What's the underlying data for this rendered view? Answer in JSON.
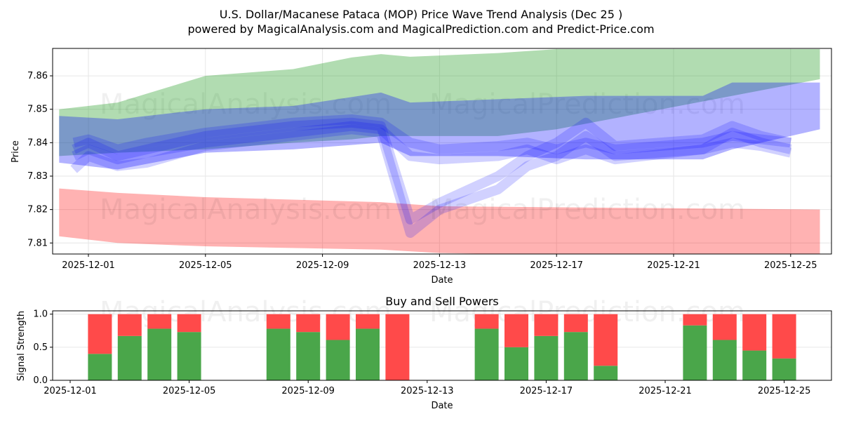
{
  "chart_data": [
    {
      "type": "area",
      "title": "U.S. Dollar/Macanese Pataca (MOP) Price Wave Trend Analysis (Dec 25 )",
      "subtitle": "powered by MagicalAnalysis.com and MagicalPrediction.com and Predict-Price.com",
      "xlabel": "Date",
      "ylabel": "Price",
      "ylim": [
        7.8067,
        7.8682
      ],
      "xlim": [
        "2025-11-29.7",
        "2025-12-26.4"
      ],
      "xticks": [
        "2025-12-01",
        "2025-12-05",
        "2025-12-09",
        "2025-12-13",
        "2025-12-17",
        "2025-12-21",
        "2025-12-25"
      ],
      "yticks": [
        "7.81",
        "7.82",
        "7.83",
        "7.84",
        "7.85",
        "7.86"
      ],
      "grid": true,
      "watermarks": [
        "MagicalAnalysis.com",
        "MagicalPrediction.com"
      ],
      "bands": [
        {
          "name": "green-band",
          "color": "#2ca02c",
          "opacity": 0.37,
          "x": [
            0,
            2,
            5,
            8,
            10,
            11,
            12,
            15,
            17,
            26
          ],
          "upper": [
            7.85,
            7.852,
            7.86,
            7.862,
            7.8655,
            7.8665,
            7.8657,
            7.8668,
            7.868,
            7.868
          ],
          "lower": [
            7.836,
            7.837,
            7.838,
            7.84,
            7.841,
            7.842,
            7.842,
            7.842,
            7.844,
            7.859
          ]
        },
        {
          "name": "blue-band",
          "color": "#0000ff",
          "opacity": 0.3,
          "x": [
            0,
            2,
            5,
            8,
            11,
            12,
            15,
            18,
            22,
            23,
            26
          ],
          "upper": [
            7.848,
            7.847,
            7.85,
            7.851,
            7.855,
            7.852,
            7.853,
            7.854,
            7.854,
            7.858,
            7.858
          ],
          "lower": [
            7.834,
            7.832,
            7.837,
            7.838,
            7.84,
            7.836,
            7.836,
            7.835,
            7.835,
            7.838,
            7.844
          ]
        },
        {
          "name": "red-band",
          "color": "#ff0000",
          "opacity": 0.3,
          "x": [
            0,
            2,
            5,
            11,
            13,
            26
          ],
          "upper": [
            7.8263,
            7.825,
            7.8237,
            7.8222,
            7.821,
            7.82
          ],
          "lower": [
            7.812,
            7.81,
            7.809,
            7.808,
            7.807,
            7.805
          ]
        }
      ],
      "lines": [
        {
          "x": [
            0.5,
            1,
            2,
            3,
            5,
            8,
            10,
            11,
            12,
            13,
            15,
            16,
            17,
            18,
            19,
            22,
            23,
            24,
            25
          ],
          "y": [
            7.838,
            7.84,
            7.836,
            7.838,
            7.842,
            7.845,
            7.846,
            7.845,
            7.817,
            7.822,
            7.83,
            7.836,
            7.84,
            7.846,
            7.839,
            7.841,
            7.845,
            7.842,
            7.84
          ]
        },
        {
          "x": [
            0.5,
            1,
            2,
            3,
            5,
            8,
            10,
            11,
            12,
            13,
            15,
            16,
            17,
            18,
            19,
            22,
            23,
            24,
            25
          ],
          "y": [
            7.832,
            7.836,
            7.833,
            7.834,
            7.839,
            7.842,
            7.844,
            7.843,
            7.813,
            7.82,
            7.826,
            7.833,
            7.836,
            7.842,
            7.836,
            7.838,
            7.843,
            7.84,
            7.838
          ]
        },
        {
          "x": [
            0.5,
            1,
            2,
            3,
            5,
            8,
            10,
            11,
            12,
            13,
            15,
            16,
            17,
            18,
            19,
            22,
            23,
            24,
            25
          ],
          "y": [
            7.84,
            7.841,
            7.838,
            7.84,
            7.843,
            7.846,
            7.847,
            7.846,
            7.84,
            7.838,
            7.839,
            7.84,
            7.838,
            7.84,
            7.838,
            7.84,
            7.842,
            7.841,
            7.84
          ]
        },
        {
          "x": [
            0.5,
            1,
            2,
            3,
            5,
            8,
            10,
            11,
            12,
            13,
            15,
            16,
            17,
            18,
            19,
            22,
            23,
            24,
            25
          ],
          "y": [
            7.836,
            7.838,
            7.835,
            7.837,
            7.84,
            7.843,
            7.845,
            7.844,
            7.836,
            7.835,
            7.836,
            7.838,
            7.835,
            7.838,
            7.835,
            7.838,
            7.84,
            7.839,
            7.837
          ]
        }
      ]
    },
    {
      "type": "bar",
      "title": "Buy and Sell Powers",
      "xlabel": "Date",
      "ylabel": "Signal Strength",
      "ylim": [
        0,
        1.05
      ],
      "yticks": [
        "0.0",
        "0.5",
        "1.0"
      ],
      "xticks": [
        "2025-12-01",
        "2025-12-05",
        "2025-12-09",
        "2025-12-13",
        "2025-12-17",
        "2025-12-21",
        "2025-12-25"
      ],
      "categories": [
        "2025-12-02",
        "2025-12-03",
        "2025-12-04",
        "2025-12-05",
        "2025-12-08",
        "2025-12-09",
        "2025-12-10",
        "2025-12-11",
        "2025-12-12",
        "2025-12-15",
        "2025-12-16",
        "2025-12-17",
        "2025-12-18",
        "2025-12-19",
        "2025-12-22",
        "2025-12-23",
        "2025-12-24",
        "2025-12-25"
      ],
      "series": [
        {
          "name": "Buy",
          "color": "#4aa64a",
          "values": [
            0.4,
            0.67,
            0.78,
            0.73,
            0.78,
            0.73,
            0.61,
            0.78,
            0.0,
            0.78,
            0.5,
            0.67,
            0.73,
            0.22,
            0.83,
            0.61,
            0.45,
            0.33
          ]
        },
        {
          "name": "Sell",
          "color": "#ff4a4a",
          "values": [
            0.6,
            0.33,
            0.22,
            0.27,
            0.22,
            0.27,
            0.39,
            0.22,
            1.0,
            0.22,
            0.5,
            0.33,
            0.27,
            0.78,
            0.17,
            0.39,
            0.55,
            0.67
          ]
        }
      ]
    }
  ]
}
